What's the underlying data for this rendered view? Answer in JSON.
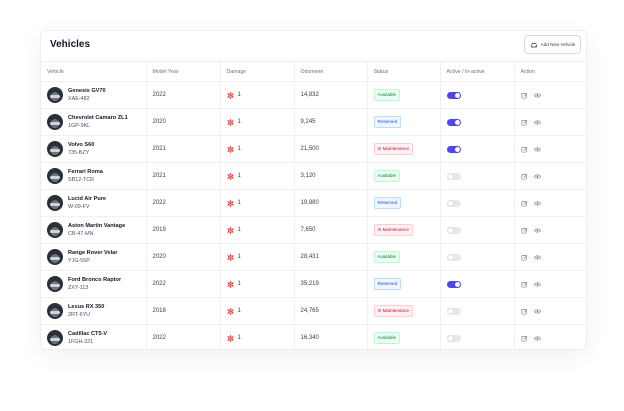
{
  "header": {
    "title": "Vehicles",
    "add_button_label": "Add New Vehicle"
  },
  "columns": [
    "Vehicle",
    "Model Year",
    "Damage",
    "Odometer",
    "Status",
    "Active / In-active",
    "Action"
  ],
  "icons": {
    "add": "car-icon",
    "damage": "damage-icon",
    "edit": "edit-icon",
    "view": "eye-icon"
  },
  "colors": {
    "accent": "#4f46e5",
    "damage": "#dc2626"
  },
  "rows": [
    {
      "name": "Genesis GV70",
      "plate": "XAE-482",
      "year": "2022",
      "damage": "1",
      "odometer": "14,832",
      "status": "Available",
      "status_type": "available",
      "active": true
    },
    {
      "name": "Chevrolet Camaro ZL1",
      "plate": "1GP-9KL",
      "year": "2020",
      "damage": "1",
      "odometer": "9,245",
      "status": "Reserved",
      "status_type": "reserved",
      "active": true
    },
    {
      "name": "Volvo S60",
      "plate": "735-BZY",
      "year": "2021",
      "damage": "1",
      "odometer": "21,500",
      "status": "In Maintenance",
      "status_type": "maintenance",
      "active": true
    },
    {
      "name": "Ferrari Roma",
      "plate": "SB12-TCR",
      "year": "2021",
      "damage": "1",
      "odometer": "3,120",
      "status": "Available",
      "status_type": "available",
      "active": false
    },
    {
      "name": "Lucid Air Pure",
      "plate": "W-09-FV",
      "year": "2022",
      "damage": "1",
      "odometer": "19,880",
      "status": "Reserved",
      "status_type": "reserved",
      "active": false
    },
    {
      "name": "Aston Martin Vantage",
      "plate": "CB-47-MN",
      "year": "2019",
      "damage": "1",
      "odometer": "7,650",
      "status": "In Maintenance",
      "status_type": "maintenance",
      "active": false
    },
    {
      "name": "Range Rover Velar",
      "plate": "YJG-55P",
      "year": "2020",
      "damage": "1",
      "odometer": "28,431",
      "status": "Available",
      "status_type": "available",
      "active": false
    },
    {
      "name": "Ford Bronco Raptor",
      "plate": "ZXY-113",
      "year": "2022",
      "damage": "1",
      "odometer": "35,219",
      "status": "Reserved",
      "status_type": "reserved",
      "active": true
    },
    {
      "name": "Lexus RX 350",
      "plate": "2RT-6YU",
      "year": "2018",
      "damage": "1",
      "odometer": "24,765",
      "status": "In Maintenance",
      "status_type": "maintenance",
      "active": false
    },
    {
      "name": "Cadillac CT5-V",
      "plate": "1FGH-321",
      "year": "2022",
      "damage": "1",
      "odometer": "16,340",
      "status": "Available",
      "status_type": "available",
      "active": false
    }
  ]
}
